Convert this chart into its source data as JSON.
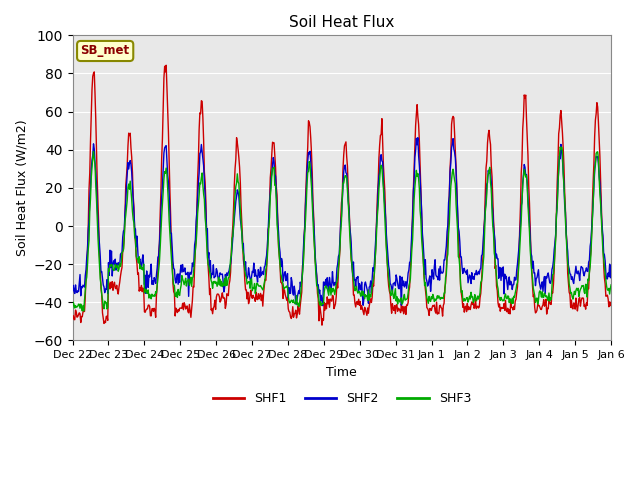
{
  "title": "Soil Heat Flux",
  "xlabel": "Time",
  "ylabel": "Soil Heat Flux (W/m2)",
  "ylim": [
    -60,
    100
  ],
  "yticks": [
    -60,
    -40,
    -20,
    0,
    20,
    40,
    60,
    80,
    100
  ],
  "xtick_labels": [
    "Dec 22",
    "Dec 23",
    "Dec 24",
    "Dec 25",
    "Dec 26",
    "Dec 27",
    "Dec 28",
    "Dec 29",
    "Dec 30",
    "Dec 31",
    "Jan 1",
    "Jan 2",
    "Jan 3",
    "Jan 4",
    "Jan 5",
    "Jan 6"
  ],
  "shf1_color": "#cc0000",
  "shf2_color": "#0000cc",
  "shf3_color": "#00aa00",
  "bg_color": "#e8e8e8",
  "annotation_text": "SB_met",
  "annotation_bg": "#ffffcc",
  "annotation_border": "#888800",
  "linewidth": 1.0,
  "legend_labels": [
    "SHF1",
    "SHF2",
    "SHF3"
  ]
}
